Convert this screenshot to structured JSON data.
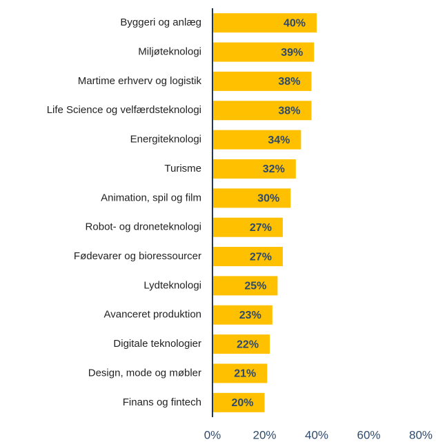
{
  "chart_data": {
    "type": "bar",
    "orientation": "horizontal",
    "categories": [
      "Byggeri og anlæg",
      "Miljøteknologi",
      "Martime erhverv og logistik",
      "Life Science og velfærdsteknologi",
      "Energiteknologi",
      "Turisme",
      "Animation, spil og film",
      "Robot- og droneteknologi",
      "Fødevarer og bioressourcer",
      "Lydteknologi",
      "Avanceret produktion",
      "Digitale teknologier",
      "Design, mode og møbler",
      "Finans og fintech"
    ],
    "values": [
      40,
      39,
      38,
      38,
      34,
      32,
      30,
      27,
      27,
      25,
      23,
      22,
      21,
      20
    ],
    "value_labels": [
      "40%",
      "39%",
      "38%",
      "38%",
      "34%",
      "32%",
      "30%",
      "27%",
      "27%",
      "25%",
      "23%",
      "22%",
      "21%",
      "20%"
    ],
    "color": "#ffc000",
    "xlim": [
      0,
      80
    ],
    "xticks": [
      {
        "value": 0,
        "label": "0%"
      },
      {
        "value": 20,
        "label": "20%"
      },
      {
        "value": 40,
        "label": "40%"
      },
      {
        "value": 60,
        "label": "60%"
      },
      {
        "value": 80,
        "label": "80%"
      }
    ],
    "grid": false
  }
}
